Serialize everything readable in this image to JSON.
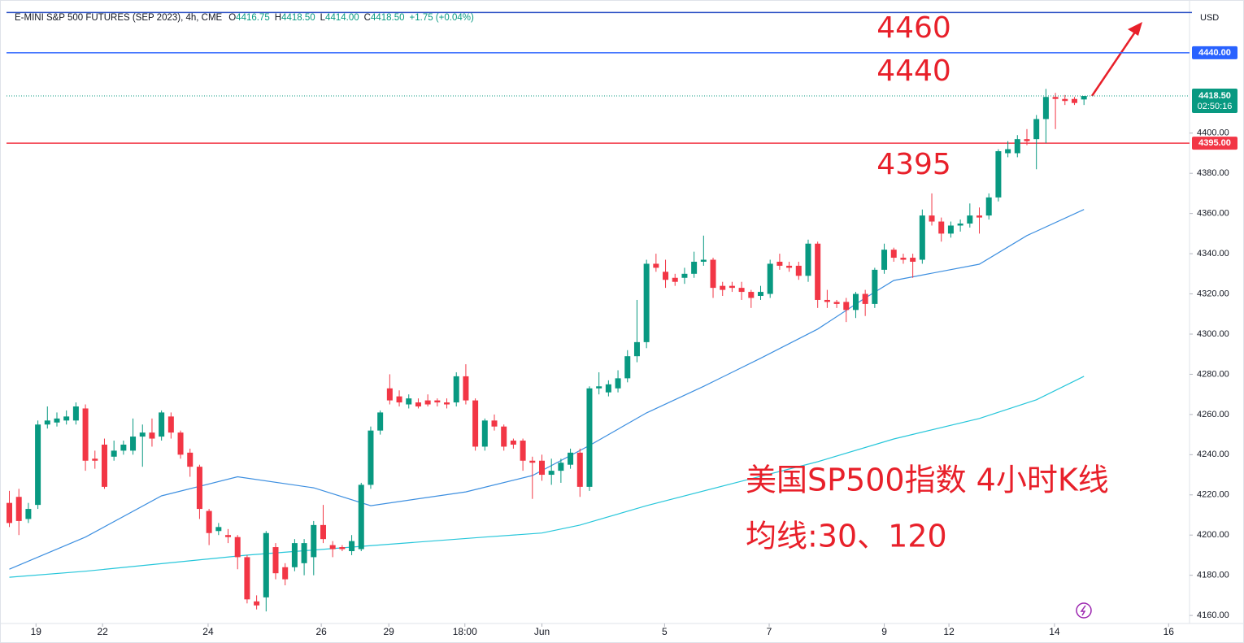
{
  "chart_data": {
    "type": "candlestick",
    "header": {
      "title": "E-MINI S&P 500 FUTURES (SEP 2023), 4h, CME",
      "ohlc": [
        {
          "key": "O",
          "text": "4416.75"
        },
        {
          "key": "H",
          "text": "4418.50"
        },
        {
          "key": "L",
          "text": "4414.00"
        },
        {
          "key": "C",
          "text": "4418.50"
        }
      ],
      "change": "+1.75 (+0.04%)"
    },
    "currency": "USD",
    "up_color": "#089981",
    "down_color": "#f23645",
    "candles": {
      "open": [
        4216,
        4219,
        4208,
        4215,
        4255,
        4256,
        4257,
        4257,
        4263,
        4238,
        4245,
        4239,
        4242,
        4242,
        4249,
        4251,
        4249,
        4259,
        4251,
        4241,
        4234,
        4212,
        4202,
        4200,
        4199,
        4189,
        4167,
        4169,
        4194,
        4184,
        4184,
        4186,
        4189,
        4205,
        4195,
        4194,
        4192,
        4193,
        4225,
        4252,
        4273,
        4269,
        4265,
        4266,
        4267,
        4267,
        4266,
        4266,
        4279,
        4267,
        4244,
        4257,
        4254,
        4247,
        4247,
        4237,
        4237,
        4230,
        4232,
        4235,
        4241,
        4224,
        4273,
        4271,
        4273,
        4278,
        4289,
        4296,
        4335,
        4331,
        4328,
        4328,
        4330,
        4336,
        4337,
        4324,
        4324,
        4323,
        4321,
        4319,
        4320,
        4336,
        4334,
        4334,
        4329,
        4345,
        4317,
        4316,
        4316,
        4312,
        4320,
        4315,
        4332,
        4342,
        4338,
        4338,
        4337,
        4359,
        4356,
        4350,
        4354,
        4355,
        4359,
        4359,
        4368,
        4390,
        4390,
        4397,
        4397,
        4407,
        4418,
        4417,
        4417,
        4416.75
      ],
      "high": [
        4222,
        4223,
        4216,
        4257,
        4264,
        4261,
        4262,
        4266,
        4265,
        4242,
        4248,
        4247,
        4247,
        4258,
        4255,
        4258,
        4262,
        4261,
        4252,
        4243,
        4235,
        4213,
        4206,
        4203,
        4200,
        4190,
        4170,
        4202,
        4196,
        4186,
        4198,
        4198,
        4207,
        4215,
        4197,
        4195,
        4200,
        4226,
        4254,
        4262,
        4280,
        4272,
        4270,
        4268,
        4270,
        4268,
        4268,
        4281,
        4285,
        4268,
        4258,
        4260,
        4255,
        4248,
        4248,
        4239,
        4240,
        4238,
        4238,
        4243,
        4243,
        4274,
        4281,
        4277,
        4282,
        4292,
        4317,
        4337,
        4340,
        4337,
        4330,
        4333,
        4341,
        4349,
        4338,
        4326,
        4326,
        4326,
        4322,
        4324,
        4337,
        4340,
        4336,
        4336,
        4347,
        4346,
        4322,
        4317,
        4318,
        4321,
        4322,
        4333,
        4345,
        4343,
        4340,
        4340,
        4362,
        4370,
        4358,
        4356,
        4357,
        4365,
        4363,
        4370,
        4392,
        4396,
        4399,
        4402,
        4409,
        4422,
        4420,
        4419,
        4418,
        4418.5
      ],
      "low": [
        4204,
        4200,
        4206,
        4213,
        4253,
        4254,
        4255,
        4255,
        4232,
        4233,
        4223,
        4237,
        4240,
        4240,
        4234,
        4244,
        4247,
        4248,
        4238,
        4229,
        4208,
        4195,
        4200,
        4196,
        4183,
        4166,
        4163,
        4162,
        4178,
        4175,
        4182,
        4180,
        4180,
        4196,
        4189,
        4192,
        4190,
        4192,
        4223,
        4250,
        4265,
        4264,
        4263,
        4263,
        4264,
        4264,
        4263,
        4264,
        4265,
        4242,
        4242,
        4252,
        4242,
        4243,
        4232,
        4218,
        4227,
        4225,
        4226,
        4233,
        4219,
        4222,
        4270,
        4269,
        4271,
        4276,
        4286,
        4293,
        4331,
        4323,
        4324,
        4325,
        4328,
        4334,
        4318,
        4319,
        4321,
        4317,
        4313,
        4317,
        4318,
        4332,
        4331,
        4327,
        4326,
        4313,
        4313,
        4313,
        4306,
        4308,
        4309,
        4313,
        4330,
        4336,
        4335,
        4328,
        4335,
        4354,
        4346,
        4348,
        4351,
        4353,
        4350,
        4357,
        4366,
        4388,
        4388,
        4394,
        4382,
        4395,
        4402,
        4414,
        4414,
        4414
      ],
      "close": [
        4206,
        4207,
        4213,
        4255,
        4257,
        4258,
        4259,
        4264,
        4237,
        4237,
        4224,
        4242,
        4245,
        4249,
        4251,
        4248,
        4261,
        4251,
        4240,
        4234,
        4213,
        4201,
        4204,
        4199,
        4189,
        4168,
        4165,
        4201,
        4181,
        4178,
        4196,
        4196,
        4205,
        4198,
        4193,
        4193,
        4197,
        4225,
        4252,
        4261,
        4267,
        4266,
        4268,
        4264,
        4265,
        4266,
        4265,
        4279,
        4267,
        4244,
        4257,
        4254,
        4244,
        4245,
        4237,
        4236,
        4230,
        4232,
        4236,
        4241,
        4224,
        4273,
        4274,
        4275,
        4278,
        4289,
        4296,
        4335,
        4333,
        4327,
        4326,
        4330,
        4336,
        4337,
        4323,
        4322,
        4323,
        4321,
        4318,
        4321,
        4335,
        4334,
        4333,
        4329,
        4345,
        4317,
        4316,
        4315,
        4312,
        4320,
        4315,
        4332,
        4342,
        4338,
        4337,
        4336,
        4359,
        4356,
        4350,
        4354,
        4355,
        4359,
        4358,
        4368,
        4391,
        4392,
        4397,
        4396,
        4407,
        4418,
        4417,
        4416,
        4415,
        4418.5
      ]
    },
    "series": [
      {
        "color": "#3d8fe0",
        "x": [
          0,
          8,
          16,
          24,
          32,
          38,
          48,
          55,
          61,
          67,
          73,
          79,
          85,
          90,
          93,
          102,
          107,
          113
        ],
        "values": [
          4183,
          4199,
          4219.5,
          4229,
          4223.5,
          4214.6,
          4221.5,
          4229.6,
          4244.6,
          4260.8,
          4274,
          4288,
          4302.5,
          4318,
          4326.7,
          4334.8,
          4349,
          4362
        ]
      },
      {
        "color": "#26c6da",
        "x": [
          0,
          8,
          25,
          37,
          50,
          56,
          60,
          67,
          76,
          85,
          93,
          102,
          108,
          113
        ],
        "values": [
          4179,
          4182,
          4190,
          4194.4,
          4199,
          4201,
          4205,
          4214.6,
          4225.6,
          4236.5,
          4247.8,
          4258,
          4267.3,
          4279
        ]
      }
    ],
    "xlim": [
      -0.3,
      124.1
    ],
    "ylim": [
      4156,
      4463
    ],
    "yticks": [
      {
        "value": 4160,
        "label": "4160.00"
      },
      {
        "value": 4180,
        "label": "4180.00"
      },
      {
        "value": 4200,
        "label": "4200.00"
      },
      {
        "value": 4220,
        "label": "4220.00"
      },
      {
        "value": 4240,
        "label": "4240.00"
      },
      {
        "value": 4260,
        "label": "4260.00"
      },
      {
        "value": 4280,
        "label": "4280.00"
      },
      {
        "value": 4300,
        "label": "4300.00"
      },
      {
        "value": 4320,
        "label": "4320.00"
      },
      {
        "value": 4340,
        "label": "4340.00"
      },
      {
        "value": 4360,
        "label": "4360.00"
      },
      {
        "value": 4380,
        "label": "4380.00"
      },
      {
        "value": 4400,
        "label": "4400.00"
      }
    ],
    "xticks": [
      {
        "value": 2.8,
        "label": "19"
      },
      {
        "value": 9.8,
        "label": "22"
      },
      {
        "value": 20.9,
        "label": "24"
      },
      {
        "value": 32.8,
        "label": "26"
      },
      {
        "value": 39.9,
        "label": "29"
      },
      {
        "value": 47.9,
        "label": "18:00"
      },
      {
        "value": 56,
        "label": "Jun"
      },
      {
        "value": 68.9,
        "label": "5"
      },
      {
        "value": 79.9,
        "label": "7"
      },
      {
        "value": 92,
        "label": "9"
      },
      {
        "value": 98.8,
        "label": "12"
      },
      {
        "value": 109.9,
        "label": "14"
      },
      {
        "value": 121.9,
        "label": "16"
      }
    ],
    "grid": false,
    "hlines": [
      {
        "value": 4460,
        "color": "#2a4fc4"
      },
      {
        "value": 4440,
        "color": "#2962ff",
        "label": "4440.00"
      },
      {
        "value": 4395,
        "color": "#f23645",
        "label": "4395.00"
      }
    ],
    "last_price": {
      "value": 4418.5,
      "label": "4418.50",
      "countdown": "02:50:16",
      "color": "#089981"
    },
    "annotations": [
      "4460",
      "4440",
      "4395"
    ],
    "captions": [
      "美国SP500指数 4小时K线",
      "均线:30、120"
    ]
  }
}
